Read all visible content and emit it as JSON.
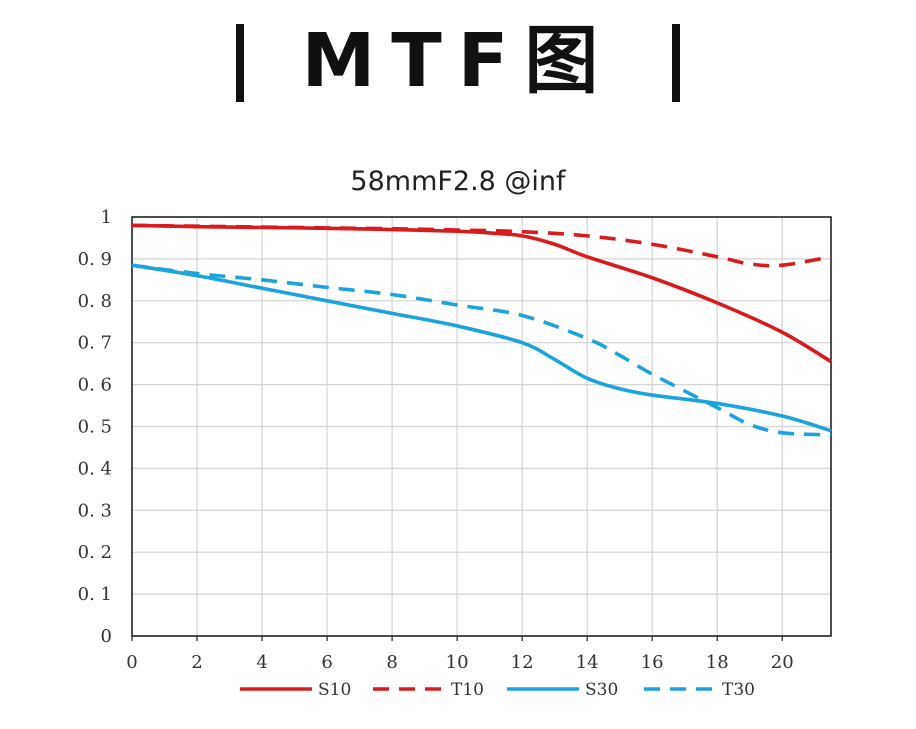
{
  "heading": {
    "text": "MTF图"
  },
  "chart_data": {
    "type": "line",
    "title": "58mmF2.8 @inf",
    "xlabel": "",
    "ylabel": "",
    "xlim": [
      0,
      21.5
    ],
    "ylim": [
      0,
      1
    ],
    "grid": true,
    "legend_position": "bottom",
    "x_ticks": [
      0,
      2,
      4,
      6,
      8,
      10,
      12,
      14,
      16,
      18,
      20
    ],
    "x_tick_labels": [
      "0",
      "2",
      "4",
      "6",
      "8",
      "10",
      "12",
      "14",
      "16",
      "18",
      "20"
    ],
    "y_ticks": [
      0,
      0.1,
      0.2,
      0.3,
      0.4,
      0.5,
      0.6,
      0.7,
      0.8,
      0.9,
      1
    ],
    "y_tick_labels": [
      "0",
      "0. 1",
      "0. 2",
      "0. 3",
      "0. 4",
      "0. 5",
      "0. 6",
      "0. 7",
      "0. 8",
      "0. 9",
      "1"
    ],
    "series": [
      {
        "name": "S10",
        "color": "#d91a1f",
        "dash": "solid",
        "x": [
          0,
          2,
          4,
          6,
          8,
          10,
          11,
          12,
          13,
          14,
          16,
          18,
          20,
          21.5
        ],
        "y": [
          0.98,
          0.977,
          0.975,
          0.973,
          0.97,
          0.966,
          0.962,
          0.955,
          0.935,
          0.905,
          0.855,
          0.795,
          0.725,
          0.655
        ]
      },
      {
        "name": "T10",
        "color": "#d91a1f",
        "dash": "dashed",
        "x": [
          0,
          2,
          4,
          6,
          8,
          10,
          12,
          14,
          16,
          18,
          19,
          20,
          21.5
        ],
        "y": [
          0.98,
          0.978,
          0.976,
          0.974,
          0.972,
          0.969,
          0.965,
          0.955,
          0.935,
          0.905,
          0.888,
          0.885,
          0.905
        ]
      },
      {
        "name": "S30",
        "color": "#1aa3dc",
        "dash": "solid",
        "x": [
          0,
          2,
          4,
          6,
          8,
          10,
          12,
          13,
          14,
          15,
          16,
          18,
          20,
          21.5
        ],
        "y": [
          0.885,
          0.86,
          0.83,
          0.8,
          0.77,
          0.74,
          0.7,
          0.66,
          0.615,
          0.59,
          0.575,
          0.555,
          0.525,
          0.49
        ]
      },
      {
        "name": "T30",
        "color": "#1aa3dc",
        "dash": "dashed",
        "x": [
          0,
          2,
          4,
          6,
          8,
          10,
          12,
          14,
          15,
          16,
          18,
          19,
          20,
          21.5
        ],
        "y": [
          0.885,
          0.865,
          0.85,
          0.832,
          0.815,
          0.79,
          0.765,
          0.71,
          0.67,
          0.625,
          0.545,
          0.505,
          0.485,
          0.48
        ]
      }
    ]
  }
}
